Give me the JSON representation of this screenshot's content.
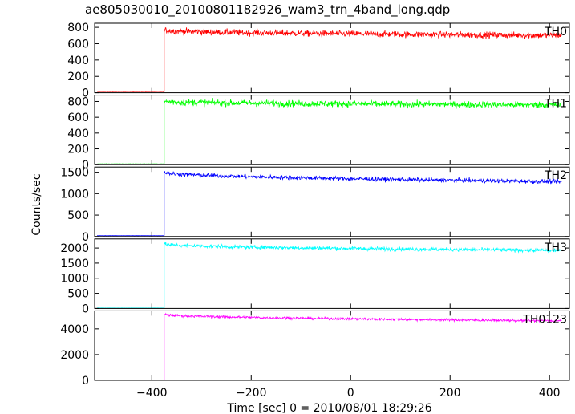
{
  "chart_data": {
    "type": "line",
    "title": "ae805030010_20100801182926_wam3_trn_4band_long.qdp",
    "xlabel": "Time [sec] 0 = 2010/08/01 18:29:26",
    "ylabel": "Counts/sec",
    "xlim": [
      -515,
      440
    ],
    "x_ticks": [
      -400,
      -200,
      0,
      200,
      400
    ],
    "x_tick_labels": [
      "−400",
      "−200",
      "0",
      "200",
      "400"
    ],
    "step_time": -375,
    "data_start": -510,
    "data_end": 425,
    "grid": false,
    "panels": [
      {
        "name": "TH0",
        "color": "#ff0000",
        "ylim": [
          0,
          850
        ],
        "yticks": [
          0,
          200,
          400,
          600,
          800
        ],
        "pre_level": 15,
        "peak_level": 765,
        "end_level": 700,
        "noise": 28
      },
      {
        "name": "TH1",
        "color": "#00ff00",
        "ylim": [
          0,
          880
        ],
        "yticks": [
          0,
          200,
          400,
          600,
          800
        ],
        "pre_level": 10,
        "peak_level": 800,
        "end_level": 755,
        "noise": 30
      },
      {
        "name": "TH2",
        "color": "#0000ff",
        "ylim": [
          0,
          1620
        ],
        "yticks": [
          0,
          500,
          1000,
          1500
        ],
        "pre_level": 20,
        "peak_level": 1500,
        "end_level": 1280,
        "noise": 35
      },
      {
        "name": "TH3",
        "color": "#00ffff",
        "ylim": [
          0,
          2300
        ],
        "yticks": [
          0,
          500,
          1000,
          1500,
          2000
        ],
        "pre_level": 15,
        "peak_level": 2130,
        "end_level": 1920,
        "noise": 45
      },
      {
        "name": "TH0123",
        "color": "#ff00ff",
        "ylim": [
          0,
          5400
        ],
        "yticks": [
          0,
          2000,
          4000
        ],
        "pre_level": 30,
        "peak_level": 5130,
        "end_level": 4620,
        "noise": 70
      }
    ]
  }
}
